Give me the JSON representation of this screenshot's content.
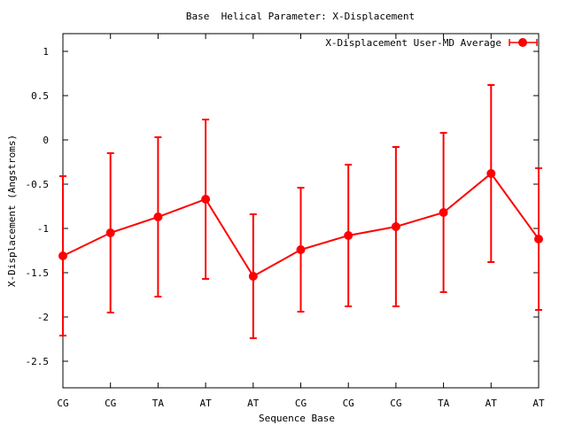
{
  "chart_data": {
    "type": "line",
    "title": "Base  Helical Parameter: X-Displacement",
    "xlabel": "Sequence Base",
    "ylabel": "X-Displacement (Angstroms)",
    "categories": [
      "CG",
      "CG",
      "TA",
      "AT",
      "AT",
      "CG",
      "CG",
      "CG",
      "TA",
      "AT",
      "AT"
    ],
    "ylim": [
      -2.8,
      1.2
    ],
    "yticks": [
      1,
      0.5,
      0,
      -0.5,
      -1,
      -1.5,
      -2,
      -2.5
    ],
    "ytick_labels": [
      "1",
      "0.5",
      "0",
      "-0.5",
      "-1",
      "-1.5",
      "-2",
      "-2.5"
    ],
    "grid": false,
    "legend_position": "top-right",
    "series": [
      {
        "name": "X-Displacement User-MD Average",
        "color": "#ff0000",
        "values": [
          -1.31,
          -1.05,
          -0.87,
          -0.67,
          -1.54,
          -1.24,
          -1.08,
          -0.98,
          -0.82,
          -0.38,
          -1.12
        ],
        "error_low": [
          -2.21,
          -1.95,
          -1.77,
          -1.57,
          -2.24,
          -1.94,
          -1.88,
          -1.88,
          -1.72,
          -1.38,
          -1.92
        ],
        "error_high": [
          -0.41,
          -0.15,
          0.03,
          0.23,
          -0.84,
          -0.54,
          -0.28,
          -0.08,
          0.08,
          0.62,
          -0.32
        ]
      }
    ]
  }
}
